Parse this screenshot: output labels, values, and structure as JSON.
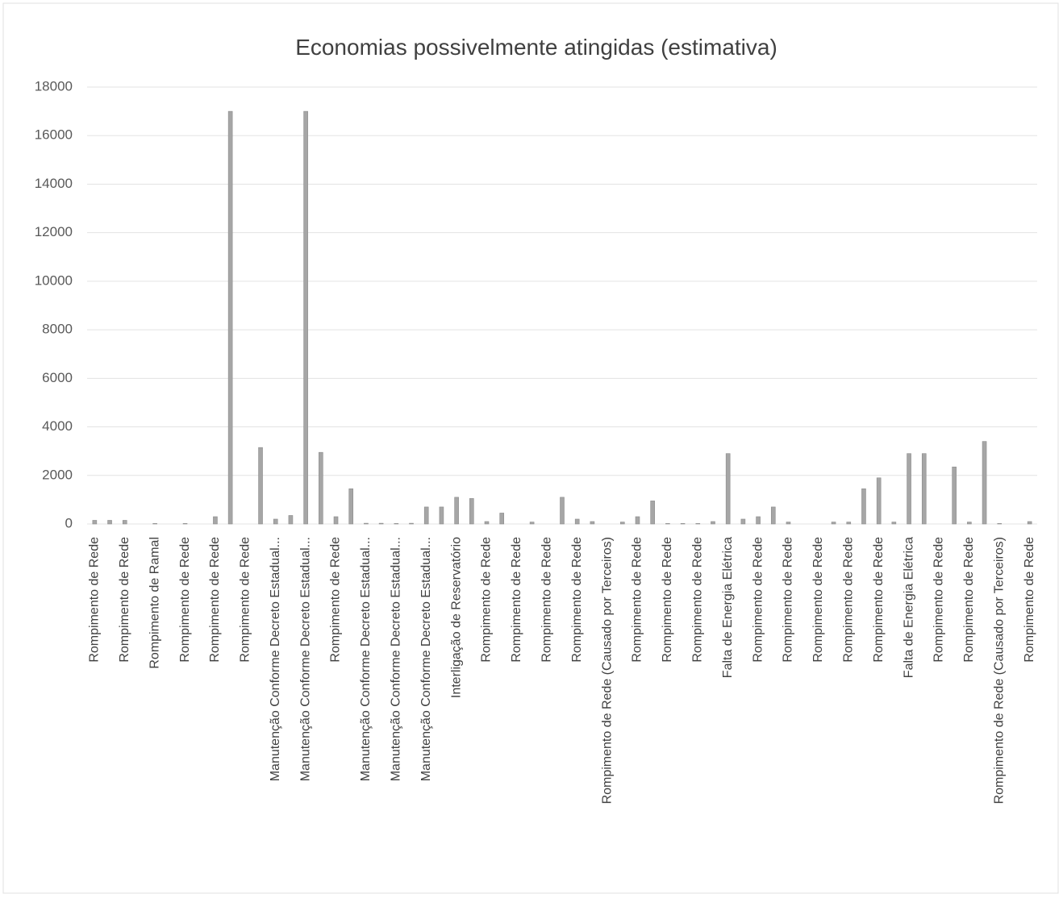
{
  "chart_data": {
    "type": "bar",
    "title": "Economias possivelmente atingidas (estimativa)",
    "categories": [
      "Rompimento de Rede",
      null,
      "Rompimento de Rede",
      null,
      "Rompimento de Ramal",
      null,
      "Rompimento de Rede",
      null,
      "Rompimento de Rede",
      null,
      "Rompimento de Rede",
      null,
      "Manutenção Conforme Decreto Estadual...",
      null,
      "Manutenção Conforme Decreto Estadual...",
      null,
      "Rompimento de Rede",
      null,
      "Manutenção Conforme Decreto Estadual...",
      null,
      "Manutenção Conforme Decreto Estadual...",
      null,
      "Manutenção Conforme Decreto Estadual...",
      null,
      "Interligação de Reservatório",
      null,
      "Rompimento de Rede",
      null,
      "Rompimento de Rede",
      null,
      "Rompimento de Rede",
      null,
      "Rompimento de Rede",
      null,
      "Rompimento de Rede (Causado por Terceiros)",
      null,
      "Rompimento de Rede",
      null,
      "Rompimento de Rede",
      null,
      "Rompimento de Rede",
      null,
      "Falta de Energia Elétrica",
      null,
      "Rompimento de Rede",
      null,
      "Rompimento de Rede",
      null,
      "Rompimento de Rede",
      null,
      "Rompimento de Rede",
      null,
      "Rompimento de Rede",
      null,
      "Falta de Energia Elétrica",
      null,
      "Rompimento de Rede",
      null,
      "Rompimento de Rede",
      null,
      "Rompimento de Rede (Causado por Terceiros)",
      null,
      "Rompimento de Rede"
    ],
    "values": [
      150,
      150,
      150,
      0,
      20,
      0,
      20,
      0,
      300,
      17000,
      0,
      3150,
      200,
      350,
      17000,
      2950,
      300,
      1450,
      30,
      30,
      20,
      30,
      700,
      700,
      1100,
      1050,
      100,
      450,
      0,
      80,
      0,
      1100,
      200,
      100,
      0,
      80,
      300,
      950,
      20,
      20,
      20,
      100,
      2900,
      200,
      300,
      700,
      80,
      0,
      0,
      80,
      80,
      1450,
      1900,
      80,
      2900,
      2900,
      0,
      2350,
      80,
      3400,
      20,
      0,
      100
    ],
    "color": "#a6a6a6",
    "ylim": [
      0,
      18000
    ],
    "yticks": [
      0,
      2000,
      4000,
      6000,
      8000,
      10000,
      12000,
      14000,
      16000,
      18000
    ],
    "grid": true
  }
}
